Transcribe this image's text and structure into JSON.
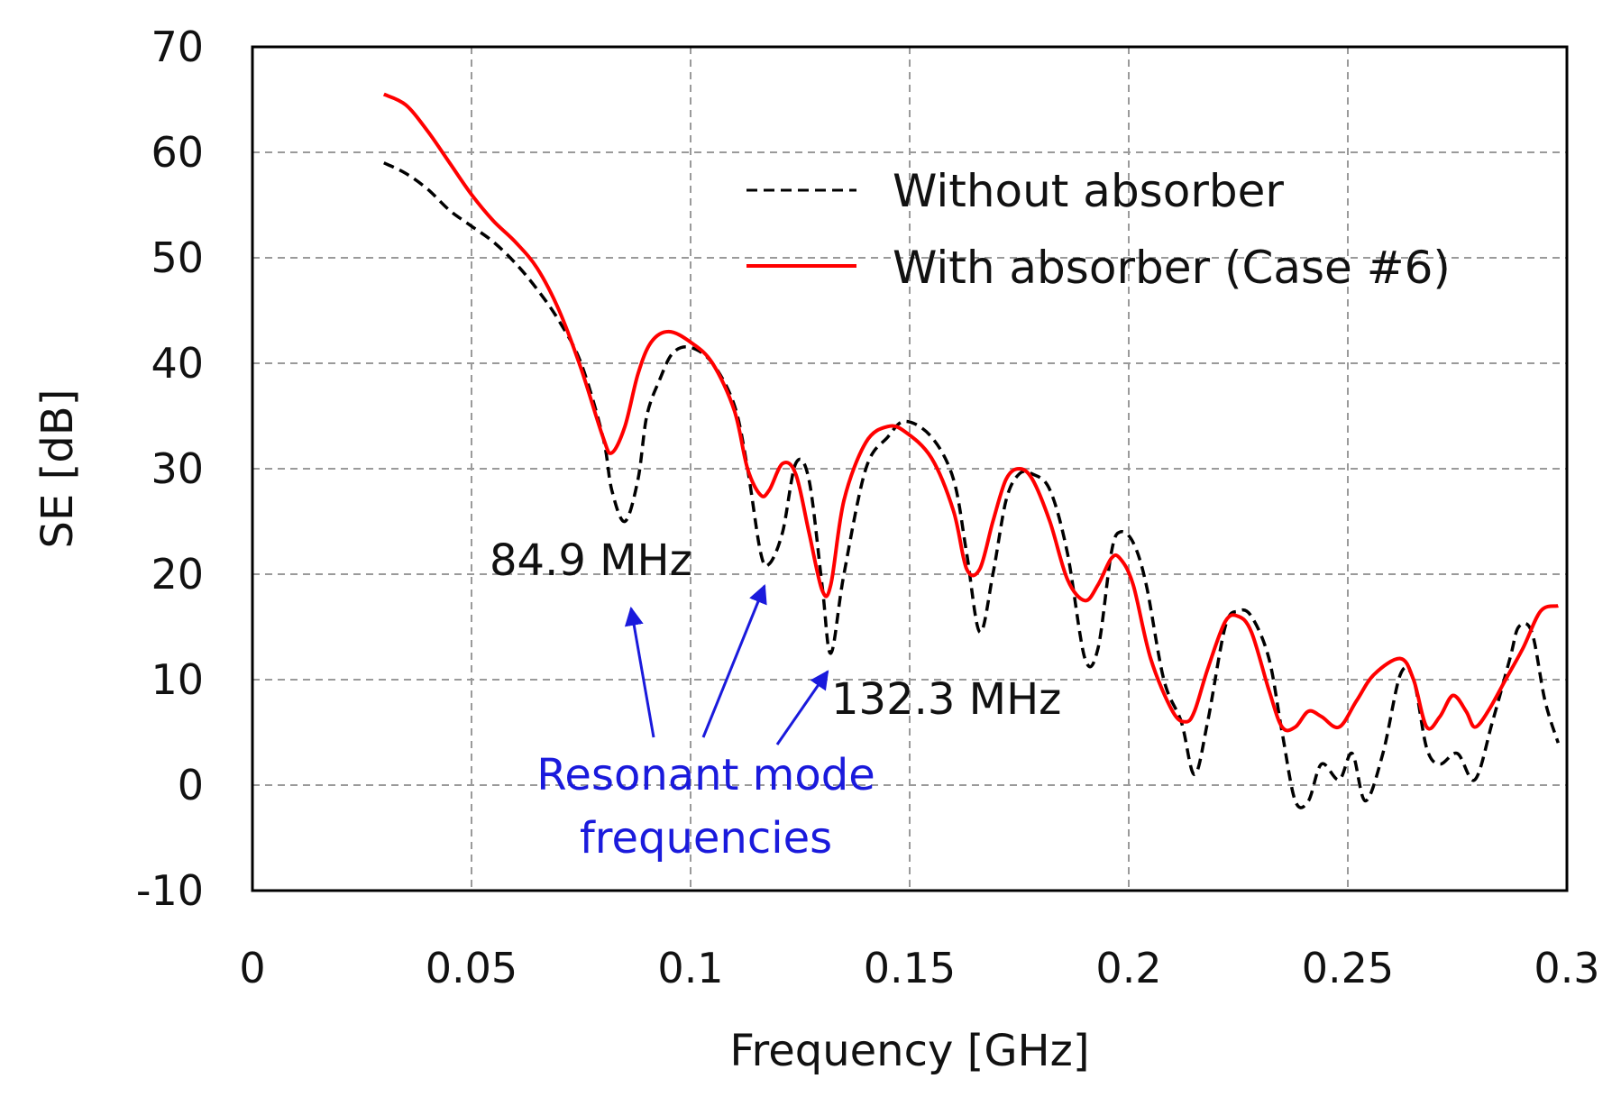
{
  "chart_data": {
    "type": "line",
    "title": "",
    "xlabel": "Frequency [GHz]",
    "ylabel": "SE [dB]",
    "xlim": [
      0,
      0.3
    ],
    "ylim": [
      -10,
      70
    ],
    "grid": true,
    "legend_position": "top-right",
    "x_ticks": [
      0,
      0.05,
      0.1,
      0.15,
      0.2,
      0.25,
      0.3
    ],
    "x_tick_labels": [
      "0",
      "0.05",
      "0.1",
      "0.15",
      "0.2",
      "0.25",
      "0.3"
    ],
    "y_ticks": [
      -10,
      0,
      10,
      20,
      30,
      40,
      50,
      60,
      70
    ],
    "y_tick_labels": [
      "-10",
      "0",
      "10",
      "20",
      "30",
      "40",
      "50",
      "60",
      "70"
    ],
    "series": [
      {
        "name": "Without absorber",
        "color": "#000000",
        "style": "dashed",
        "x": [
          0.03,
          0.035,
          0.04,
          0.045,
          0.05,
          0.055,
          0.06,
          0.065,
          0.07,
          0.075,
          0.08,
          0.082,
          0.085,
          0.088,
          0.09,
          0.093,
          0.096,
          0.1,
          0.105,
          0.11,
          0.113,
          0.116,
          0.118,
          0.121,
          0.124,
          0.127,
          0.13,
          0.132,
          0.135,
          0.14,
          0.145,
          0.149,
          0.155,
          0.16,
          0.163,
          0.166,
          0.169,
          0.172,
          0.175,
          0.178,
          0.182,
          0.186,
          0.19,
          0.193,
          0.196,
          0.198,
          0.201,
          0.204,
          0.208,
          0.212,
          0.215,
          0.218,
          0.222,
          0.225,
          0.228,
          0.232,
          0.235,
          0.238,
          0.241,
          0.244,
          0.248,
          0.251,
          0.254,
          0.258,
          0.262,
          0.265,
          0.268,
          0.271,
          0.275,
          0.279,
          0.283,
          0.287,
          0.289,
          0.292,
          0.295,
          0.298
        ],
        "y": [
          59,
          58,
          56.5,
          54.5,
          53,
          51.5,
          49.5,
          47,
          44,
          40,
          33,
          28,
          25,
          29,
          35,
          38.5,
          41,
          41.5,
          40,
          36,
          30,
          22,
          21,
          24,
          30.5,
          29,
          19,
          12.5,
          20,
          30,
          33,
          34.5,
          33,
          29,
          22,
          14.5,
          20,
          27,
          29.5,
          29.5,
          28,
          22,
          12,
          13,
          22,
          24,
          23,
          19,
          10,
          6,
          1,
          6,
          15,
          16.5,
          16,
          12,
          5,
          -1.5,
          -1.5,
          2,
          0.5,
          3,
          -1.5,
          3,
          10.5,
          10,
          3.5,
          2,
          3,
          0.5,
          6,
          12,
          15,
          14.5,
          8,
          4
        ]
      },
      {
        "name": "With absorber (Case #6)",
        "color": "#ff0000",
        "style": "solid",
        "x": [
          0.03,
          0.035,
          0.04,
          0.045,
          0.05,
          0.055,
          0.06,
          0.065,
          0.07,
          0.075,
          0.08,
          0.082,
          0.085,
          0.088,
          0.091,
          0.095,
          0.1,
          0.105,
          0.11,
          0.113,
          0.116,
          0.118,
          0.121,
          0.124,
          0.127,
          0.13,
          0.132,
          0.135,
          0.14,
          0.145,
          0.149,
          0.155,
          0.16,
          0.163,
          0.166,
          0.169,
          0.172,
          0.175,
          0.178,
          0.182,
          0.186,
          0.19,
          0.193,
          0.196,
          0.198,
          0.201,
          0.205,
          0.21,
          0.213,
          0.215,
          0.218,
          0.222,
          0.225,
          0.228,
          0.232,
          0.235,
          0.238,
          0.241,
          0.244,
          0.248,
          0.252,
          0.256,
          0.262,
          0.265,
          0.268,
          0.271,
          0.274,
          0.277,
          0.279,
          0.282,
          0.286,
          0.29,
          0.294,
          0.298
        ],
        "y": [
          65.5,
          64.5,
          62,
          59,
          56,
          53.5,
          51.5,
          49,
          45,
          39.5,
          33,
          31.5,
          34,
          39,
          42,
          43,
          42,
          40,
          35.5,
          30,
          27.5,
          28,
          30.5,
          29.5,
          24,
          18.5,
          19,
          27,
          32.5,
          34,
          33.5,
          31,
          26,
          20.5,
          20.5,
          25,
          29,
          30,
          29,
          25,
          19.5,
          17.5,
          19,
          21.5,
          21.5,
          19,
          12,
          7,
          6,
          7,
          11,
          15.5,
          16,
          14.5,
          9,
          5.5,
          5.5,
          7,
          6.5,
          5.5,
          8,
          10.5,
          12,
          10,
          5.5,
          6.5,
          8.5,
          7,
          5.5,
          7,
          10,
          13,
          16.5,
          17
        ]
      }
    ],
    "annotations": [
      {
        "text": "84.9 MHz",
        "color": "#000000"
      },
      {
        "text": "132.3 MHz",
        "color": "#000000"
      },
      {
        "text": "Resonant mode",
        "color": "#1a1adc"
      },
      {
        "text": "frequencies",
        "color": "#1a1adc"
      }
    ]
  }
}
